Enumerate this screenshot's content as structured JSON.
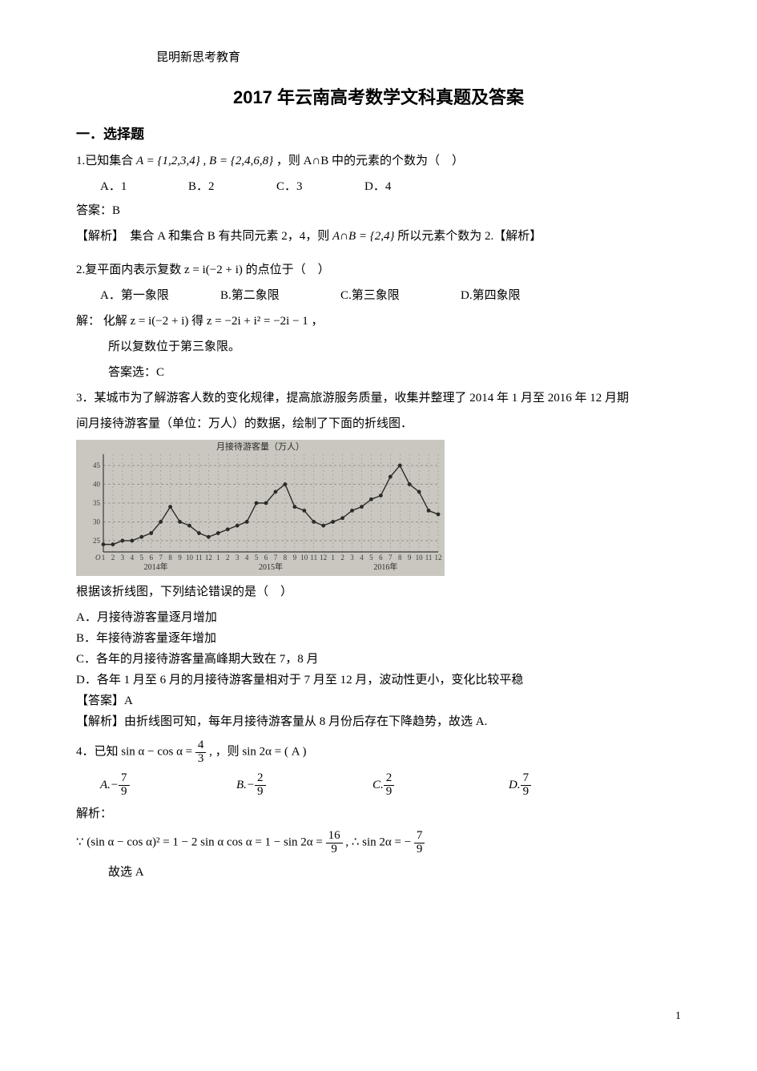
{
  "brand": "昆明新思考教育",
  "title": "2017 年云南高考数学文科真题及答案",
  "sectionHeading": "一．选择题",
  "pageNumber": "1",
  "q1": {
    "prefix": "1.已知集合 ",
    "setA": "A = {1,2,3,4}",
    "sep": " , ",
    "setB": "B = {2,4,6,8}",
    "tail": "，则 A∩B 中的元素的个数为（　）",
    "opts": {
      "A": "A．1",
      "B": "B．2",
      "C": "C．3",
      "D": "D．4"
    },
    "optGapPx": 110,
    "answerLabel": "答案：B",
    "analysisPrefix": "【解析】　集合 A 和集合 B 有共同元素 2，4，则 ",
    "analysisMid": "A∩B = {2,4}",
    "analysisSuffix": " 所以元素个数为 2.【解析】"
  },
  "q2": {
    "stem": "2.复平面内表示复数 z = i(−2 + i) 的点位于（　）",
    "opts": {
      "A": "A．第一象限",
      "B": "B.第二象限",
      "C": "C.第三象限",
      "D": "D.第四象限"
    },
    "optGapPx": 150,
    "solLabel": "解：",
    "solLine1": "化解 z = i(−2 + i) 得 z = −2i + i² = −2i − 1 ，",
    "solLine2": "所以复数位于第三象限。",
    "solLine3": "答案选：C"
  },
  "q3": {
    "stem1": "3．某城市为了解游客人数的变化规律，提高旅游服务质量，收集并整理了 2014 年 1 月至 2016 年 12 月期",
    "stem2": "间月接待游客量（单位：万人）的数据，绘制了下面的折线图．",
    "postChart": "根据该折线图，下列结论错误的是（　）",
    "optA": "A．月接待游客量逐月增加",
    "optB": "B．年接待游客量逐年增加",
    "optC": "C．各年的月接待游客量高峰期大致在 7，8 月",
    "optD": "D．各年 1 月至 6 月的月接待游客量相对于 7 月至 12 月，波动性更小，变化比较平稳",
    "answer": "【答案】A",
    "analysis": "【解析】由折线图可知，每年月接待游客量从 8 月份后存在下降趋势，故选 A."
  },
  "chart": {
    "type": "line",
    "widthPx": 460,
    "heightPx": 170,
    "background": "#c9c7bf",
    "gridColor": "#8d8a82",
    "axisColor": "#3a3a36",
    "lineColor": "#2b2a27",
    "markerColor": "#2b2a27",
    "markerRadius": 2.4,
    "lineWidth": 1.4,
    "title": "月接待游客量（万人）",
    "titleFontSize": 11,
    "axisFontSize": 9,
    "yTicks": [
      25,
      30,
      35,
      40,
      45
    ],
    "ylim": [
      22,
      48
    ],
    "xCount": 36,
    "xLabels": [
      "1",
      "2",
      "3",
      "4",
      "5",
      "6",
      "7",
      "8",
      "9",
      "10",
      "11",
      "12",
      "1",
      "2",
      "3",
      "4",
      "5",
      "6",
      "7",
      "8",
      "9",
      "10",
      "11",
      "12",
      "1",
      "2",
      "3",
      "4",
      "5",
      "6",
      "7",
      "8",
      "9",
      "10",
      "11",
      "12"
    ],
    "yearLabels": [
      "2014年",
      "2015年",
      "2016年"
    ],
    "values": [
      24,
      24,
      25,
      25,
      26,
      27,
      30,
      34,
      30,
      29,
      27,
      26,
      27,
      28,
      29,
      30,
      35,
      35,
      38,
      40,
      34,
      33,
      30,
      29,
      30,
      31,
      33,
      34,
      36,
      37,
      42,
      45,
      40,
      38,
      33,
      32
    ]
  },
  "q4": {
    "stemPrefix": "4．已知 sin α − cos α = ",
    "stemFrac": {
      "n": "4",
      "d": "3"
    },
    "stemSuffix": " , ，则 sin 2α = ( A )",
    "opts": {
      "A": {
        "label": "A.",
        "sign": "−",
        "n": "7",
        "d": "9"
      },
      "B": {
        "label": "B.",
        "sign": "−",
        "n": "2",
        "d": "9"
      },
      "C": {
        "label": "C.",
        "sign": "",
        "n": "2",
        "d": "9"
      },
      "D": {
        "label": "D.",
        "sign": "",
        "n": "7",
        "d": "9"
      }
    },
    "optGapPx": 170,
    "solHeader": "解析：",
    "solPrefix": "∵ (sin α − cos α)² = 1 − 2 sin α cos α = 1 − sin 2α = ",
    "solFrac1": {
      "n": "16",
      "d": "9"
    },
    "solMid": ", ∴ sin 2α = − ",
    "solFrac2": {
      "n": "7",
      "d": "9"
    },
    "solTail": "故选 A"
  }
}
